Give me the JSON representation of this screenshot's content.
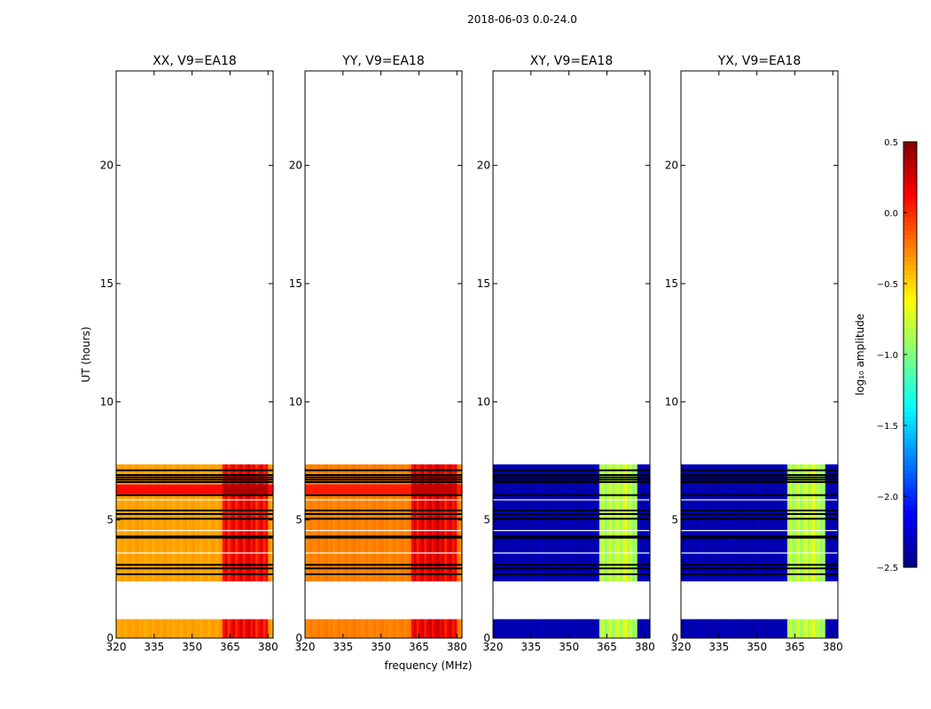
{
  "figure_title": "2018-06-03 0.0-24.0",
  "chart_data": {
    "type": "heatmap",
    "xlabel": "frequency (MHz)",
    "ylabel": "UT (hours)",
    "xlim": [
      320,
      382
    ],
    "ylim": [
      0,
      24
    ],
    "xticks": [
      320,
      335,
      350,
      365,
      380
    ],
    "yticks": [
      0,
      5,
      10,
      15,
      20
    ],
    "colorbar": {
      "label": "log₁₀ amplitude",
      "range": [
        -2.5,
        0.5
      ],
      "ticks": [
        "0.5",
        "0.0",
        "−0.5",
        "−1.0",
        "−1.5",
        "−2.0",
        "−2.5"
      ],
      "colormap": "jet"
    },
    "data_blocks_ut": [
      [
        0.0,
        0.8
      ],
      [
        2.4,
        7.35
      ]
    ],
    "flagged_rows_ut": [
      2.7,
      2.95,
      3.1,
      4.25,
      4.3,
      5.05,
      5.25,
      5.4,
      6.05,
      6.6,
      6.7,
      6.8,
      6.9,
      7.1
    ],
    "panels": [
      {
        "title": "XX, V9=EA18",
        "base_level": -0.35,
        "band_level": 0.15,
        "band_mhz": [
          362,
          380
        ],
        "dark_rows_ut": [
          6.1,
          6.5
        ],
        "dark_level": 0.1
      },
      {
        "title": "YY, V9=EA18",
        "base_level": -0.25,
        "band_level": 0.2,
        "band_mhz": [
          362,
          380
        ],
        "dark_rows_ut": [
          6.1,
          6.5
        ],
        "dark_level": 0.05
      },
      {
        "title": "XY, V9=EA18",
        "base_level": -2.35,
        "band_level": -0.8,
        "band_mhz": [
          362,
          377
        ],
        "dark_rows_ut": [],
        "dark_level": -2.0
      },
      {
        "title": "YX, V9=EA18",
        "base_level": -2.35,
        "band_level": -0.8,
        "band_mhz": [
          362,
          377
        ],
        "dark_rows_ut": [],
        "dark_level": -2.0
      }
    ]
  }
}
